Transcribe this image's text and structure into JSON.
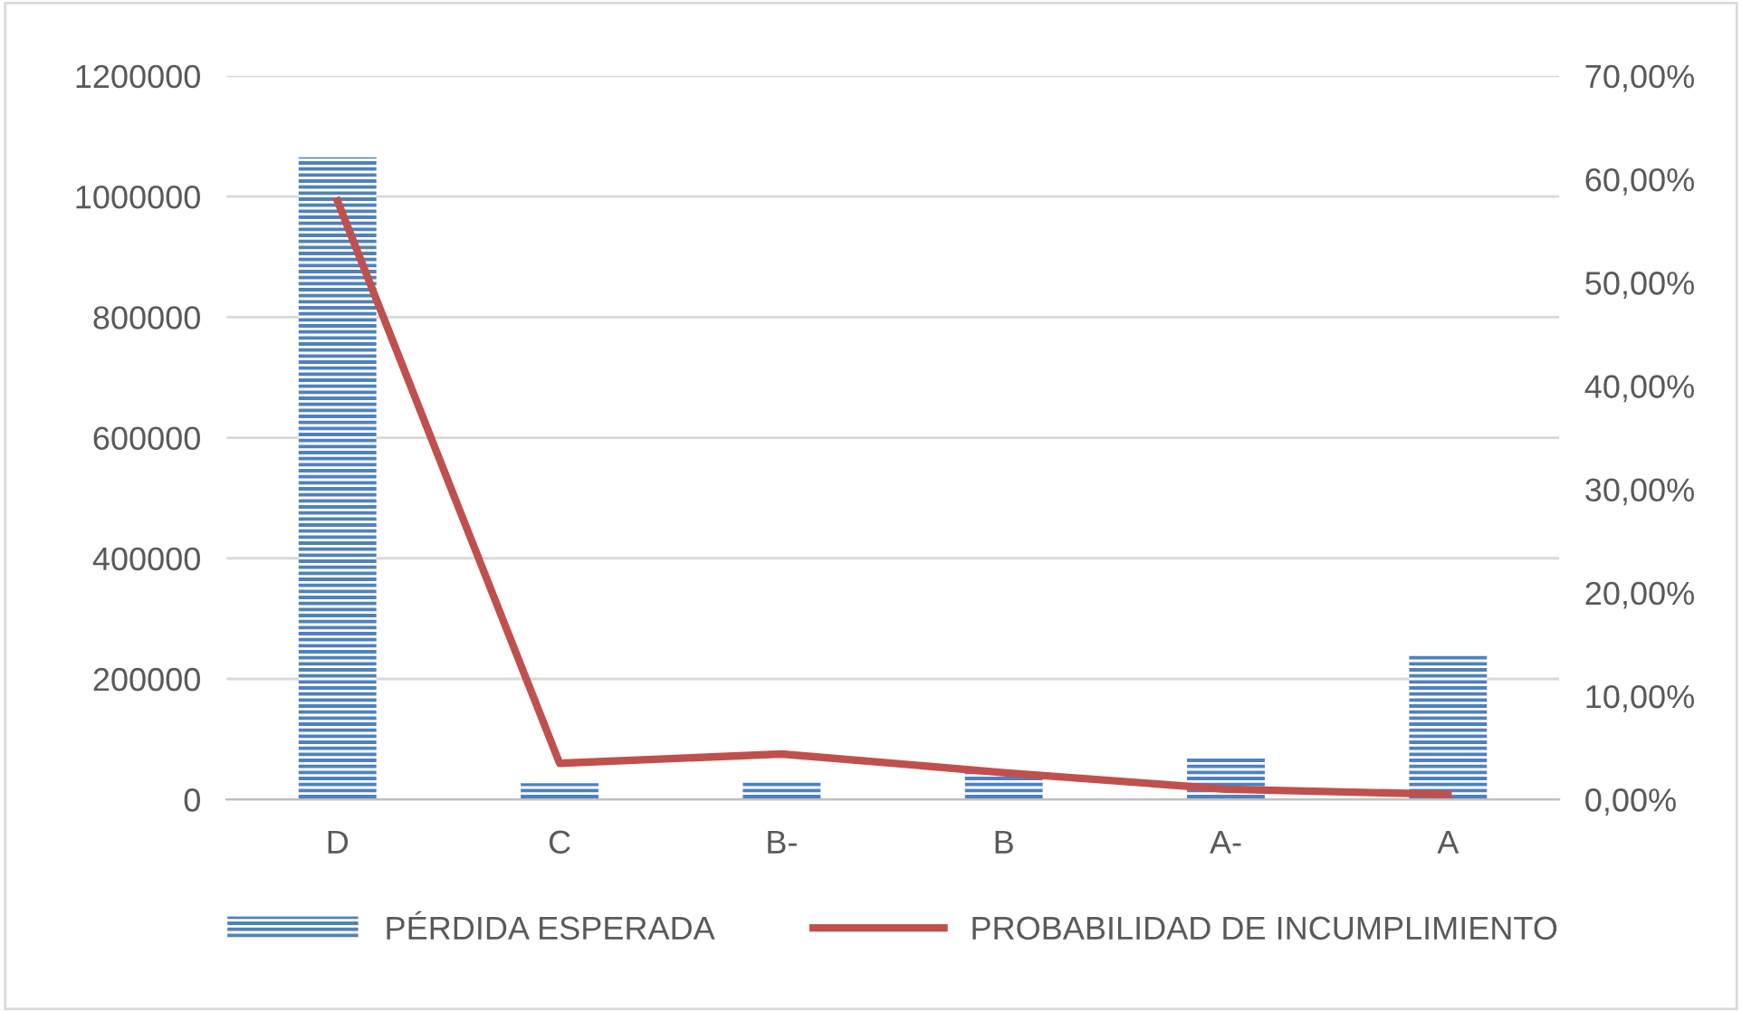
{
  "chart_data": {
    "type": "bar",
    "categories": [
      "D",
      "C",
      "B-",
      "B",
      "A-",
      "A"
    ],
    "series": [
      {
        "name": "PÉRDIDA ESPERADA",
        "color": "#4f81bd",
        "values": [
          1065000,
          27000,
          30000,
          45000,
          69000,
          240000
        ]
      },
      {
        "name": "PROBABILIDAD DE INCUMPLIMIENTO",
        "type": "line",
        "axis": "y2",
        "color": "#c0504d",
        "values": [
          0.579,
          0.035,
          0.044,
          0.026,
          0.01,
          0.005
        ]
      }
    ],
    "ylim": [
      0,
      1200000
    ],
    "yticks": [
      0,
      200000,
      400000,
      600000,
      800000,
      1000000,
      1200000
    ],
    "y2lim": [
      0,
      0.7
    ],
    "y2ticks": [
      {
        "value": 0,
        "label": "0,00%"
      },
      {
        "value": 0.1,
        "label": "10,00%"
      },
      {
        "value": 0.2,
        "label": "20,00%"
      },
      {
        "value": 0.3,
        "label": "30,00%"
      },
      {
        "value": 0.4,
        "label": "40,00%"
      },
      {
        "value": 0.5,
        "label": "50,00%"
      },
      {
        "value": 0.6,
        "label": "60,00%"
      },
      {
        "value": 0.7,
        "label": "70,00%"
      }
    ],
    "grid": "y",
    "legend": "bottom",
    "marker": "none",
    "line_style": "solid"
  }
}
